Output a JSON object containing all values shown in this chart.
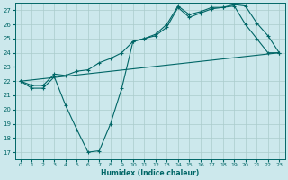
{
  "xlabel": "Humidex (Indice chaleur)",
  "bg_color": "#cce8ec",
  "grid_color": "#aacccc",
  "line_color": "#006666",
  "xlim": [
    -0.5,
    23.5
  ],
  "ylim": [
    16.5,
    27.5
  ],
  "yticks": [
    17,
    18,
    19,
    20,
    21,
    22,
    23,
    24,
    25,
    26,
    27
  ],
  "xticks": [
    0,
    1,
    2,
    3,
    4,
    5,
    6,
    7,
    8,
    9,
    10,
    11,
    12,
    13,
    14,
    15,
    16,
    17,
    18,
    19,
    20,
    21,
    22,
    23
  ],
  "line1_x": [
    0,
    1,
    2,
    3,
    4,
    5,
    6,
    7,
    8,
    9,
    10,
    11,
    12,
    13,
    14,
    15,
    16,
    17,
    18,
    19,
    20,
    21,
    22,
    23
  ],
  "line1_y": [
    22.0,
    21.5,
    21.5,
    22.3,
    20.3,
    18.6,
    17.0,
    17.1,
    19.0,
    21.5,
    24.8,
    25.0,
    25.2,
    25.8,
    27.2,
    26.5,
    26.8,
    27.1,
    27.2,
    27.3,
    26.0,
    25.0,
    24.0,
    24.0
  ],
  "line2_x": [
    0,
    1,
    2,
    3,
    4,
    5,
    6,
    7,
    8,
    9,
    10,
    11,
    12,
    13,
    14,
    15,
    16,
    17,
    18,
    19,
    20,
    21,
    22,
    23
  ],
  "line2_y": [
    22.0,
    21.7,
    21.7,
    22.5,
    22.4,
    22.7,
    22.8,
    23.3,
    23.6,
    24.0,
    24.8,
    25.0,
    25.3,
    26.0,
    27.3,
    26.7,
    26.9,
    27.2,
    27.2,
    27.4,
    27.3,
    26.1,
    25.2,
    24.0
  ],
  "line3_x": [
    0,
    23
  ],
  "line3_y": [
    22.0,
    24.0
  ]
}
